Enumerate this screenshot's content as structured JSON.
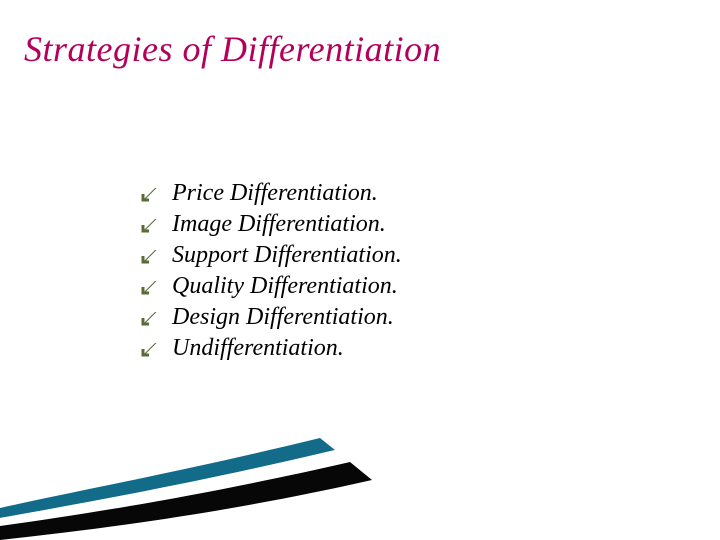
{
  "title": {
    "text": "Strategies of Differentiation",
    "color": "#b3005a",
    "fontsize": 36
  },
  "list": {
    "item_color": "#000000",
    "item_fontsize": 24,
    "bullet_color": "#5a6b3a",
    "items": [
      {
        "label": "Price Differentiation."
      },
      {
        "label": "Image Differentiation."
      },
      {
        "label": "Support Differentiation."
      },
      {
        "label": "Quality Differentiation."
      },
      {
        "label": "Design Differentiation."
      },
      {
        "label": "Undifferentiation."
      }
    ]
  },
  "swoosh": {
    "top_color": "#136b8a",
    "mid_color": "#ffffff",
    "bottom_color": "#070707"
  }
}
